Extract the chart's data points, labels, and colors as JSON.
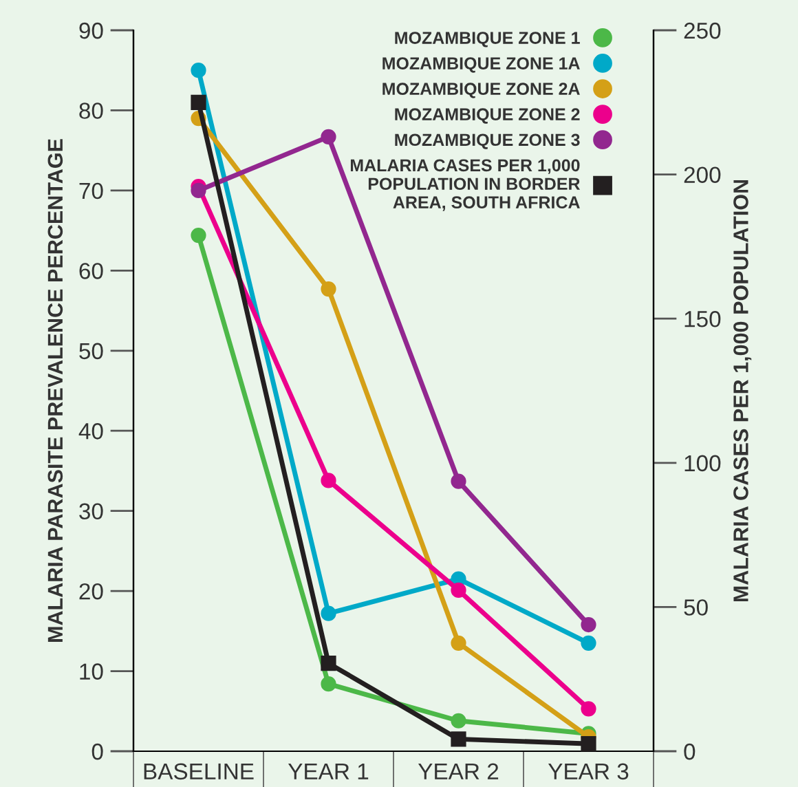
{
  "chart_data": {
    "type": "line",
    "ylabel": "MALARIA PARASITE PREVALENCE PERCENTAGE",
    "y2label": "MALARIA CASES PER 1,000 POPULATION",
    "categories": [
      "BASELINE",
      "YEAR 1",
      "YEAR 2",
      "YEAR 3"
    ],
    "series": [
      {
        "name": "MOZAMBIQUE ZONE 1",
        "color": "#4cb848",
        "values": [
          64.4,
          8.4,
          3.8,
          2.2
        ]
      },
      {
        "name": "MOZAMBIQUE ZONE 1A",
        "color": "#00a9c8",
        "values": [
          85,
          17.2,
          21.5,
          13.5
        ]
      },
      {
        "name": "MOZAMBIQUE ZONE 2A",
        "color": "#d4a017",
        "values": [
          79,
          57.7,
          13.5,
          1.8
        ]
      },
      {
        "name": "MOZAMBIQUE ZONE 2",
        "color": "#ec008c",
        "values": [
          70.5,
          33.8,
          20.1,
          5.3
        ]
      },
      {
        "name": "MOZAMBIQUE ZONE 3",
        "color": "#92278f",
        "values": [
          70,
          76.7,
          33.7,
          15.8
        ]
      },
      {
        "name": "MALARIA CASES PER 1,000 POPULATION IN BORDER AREA, SOUTH AFRICA",
        "color": "#231f20",
        "values": [
          225,
          30.5,
          4.2,
          2.6
        ],
        "axis": "y2",
        "marker": "square"
      }
    ],
    "ylim": [
      0,
      90
    ],
    "yticks": [
      0,
      10,
      20,
      30,
      40,
      50,
      60,
      70,
      80,
      90
    ],
    "y2lim": [
      0,
      250
    ],
    "y2ticks": [
      0,
      50,
      100,
      150,
      200,
      250
    ],
    "marker": "circle",
    "line_style": "solid",
    "grid": false,
    "legend": "top right"
  }
}
